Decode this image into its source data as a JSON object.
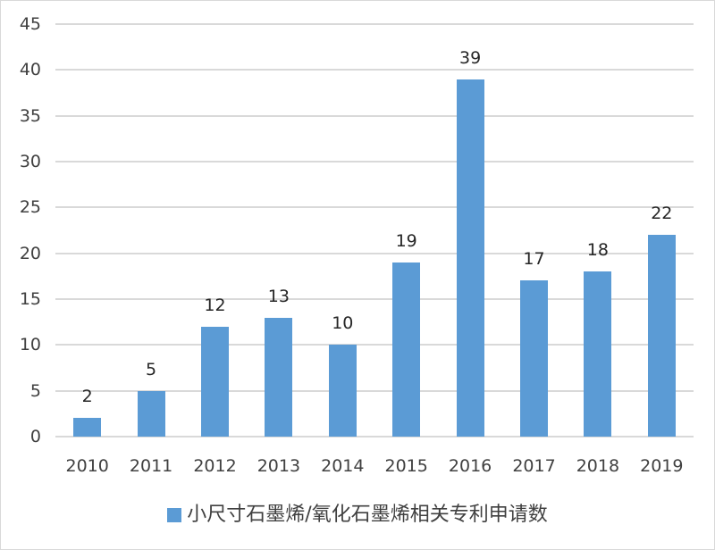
{
  "chart_data": {
    "type": "bar",
    "title": "",
    "xlabel": "",
    "ylabel": "",
    "categories": [
      "2010",
      "2011",
      "2012",
      "2013",
      "2014",
      "2015",
      "2016",
      "2017",
      "2018",
      "2019"
    ],
    "series": [
      {
        "name": "小尺寸石墨烯/氧化石墨烯相关专利申请数",
        "values": [
          2,
          5,
          12,
          13,
          10,
          19,
          39,
          17,
          18,
          22
        ],
        "color": "#5b9bd5"
      }
    ],
    "ylim": [
      0,
      45
    ],
    "yticks": [
      "0",
      "5",
      "10",
      "15",
      "20",
      "25",
      "30",
      "35",
      "40",
      "45"
    ],
    "data_labels": [
      "2",
      "5",
      "12",
      "13",
      "10",
      "19",
      "39",
      "17",
      "18",
      "22"
    ],
    "grid": true,
    "legend_position": "bottom"
  },
  "legend": {
    "label": "小尺寸石墨烯/氧化石墨烯相关专利申请数"
  }
}
